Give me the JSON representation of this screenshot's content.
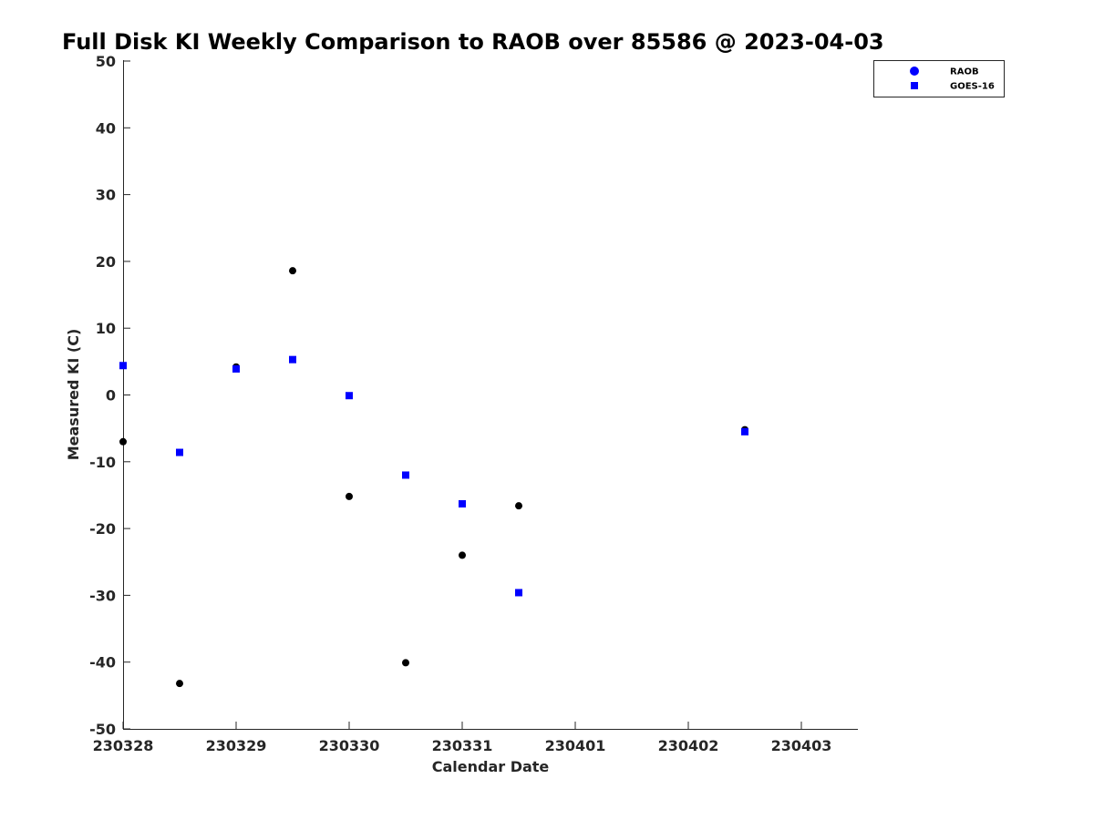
{
  "chart_data": {
    "type": "scatter",
    "title": "Full Disk KI Weekly Comparison to RAOB over 85586 @ 2023-04-03",
    "xlabel": "Calendar Date",
    "ylabel": "Measured KI (C)",
    "x_tick_labels": [
      "230328",
      "230329",
      "230330",
      "230331",
      "230401",
      "230402",
      "230403"
    ],
    "x_tick_values": [
      0,
      1,
      2,
      3,
      4,
      5,
      6
    ],
    "xlim": [
      0,
      6.5
    ],
    "ylim": [
      -50,
      50
    ],
    "y_ticks": [
      50,
      40,
      30,
      20,
      10,
      0,
      -10,
      -20,
      -30,
      -40,
      -50
    ],
    "grid": false,
    "legend_position": "top-right",
    "series": [
      {
        "name": "RAOB",
        "marker": "circle",
        "color": "#000000",
        "legend_color": "#0000ff",
        "x": [
          0,
          0.5,
          1,
          1.5,
          2,
          2.5,
          3,
          3.5,
          5.5
        ],
        "y": [
          -7.0,
          -43.2,
          4.2,
          18.6,
          -15.2,
          -40.1,
          -24.0,
          -16.6,
          -5.2
        ]
      },
      {
        "name": "GOES-16",
        "marker": "square",
        "color": "#0000ff",
        "legend_color": "#0000ff",
        "x": [
          0,
          0.5,
          1,
          1.5,
          2,
          2.5,
          3,
          3.5,
          5.5
        ],
        "y": [
          4.4,
          -8.6,
          3.9,
          5.3,
          -0.1,
          -12.0,
          -16.3,
          -29.6,
          -5.5
        ]
      }
    ]
  }
}
